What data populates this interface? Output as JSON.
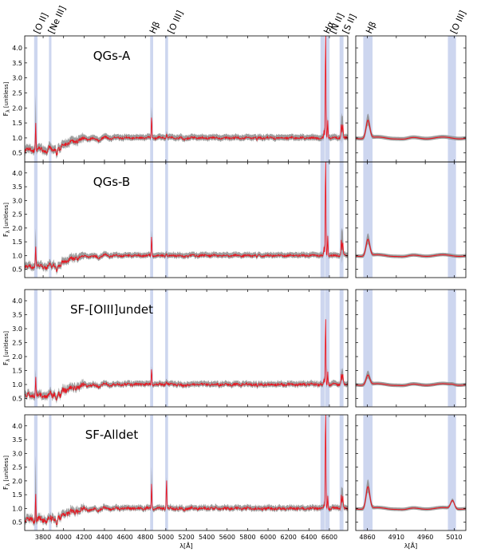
{
  "chart_data": {
    "type": "line",
    "xlabel": "λ[Å]",
    "ylabel": "F_λ [unitless]",
    "ylabel_main": "F",
    "ylabel_sub": "λ",
    "ylabel_unit": "[unitless]",
    "ylim": [
      0.2,
      4.4
    ],
    "yticks": [
      0.5,
      1.0,
      1.5,
      2.0,
      2.5,
      3.0,
      3.5,
      4.0
    ],
    "ytick_labels": [
      "0.5",
      "1.0",
      "1.5",
      "2.0",
      "2.5",
      "3.0",
      "3.5",
      "4.0"
    ],
    "main_axis": {
      "xlim": [
        3620,
        6780
      ],
      "xticks": [
        3800,
        4000,
        4200,
        4400,
        4600,
        4800,
        5000,
        5200,
        5400,
        5600,
        5800,
        6000,
        6200,
        6400,
        6600
      ],
      "xtick_labels": [
        "3800",
        "4000",
        "4200",
        "4400",
        "4600",
        "4800",
        "5000",
        "5200",
        "5400",
        "5600",
        "5800",
        "6000",
        "6200",
        "6400",
        "6600"
      ]
    },
    "zoom_axis": {
      "xlim": [
        4840,
        5030
      ],
      "xticks": [
        4860,
        4910,
        4960,
        5010
      ],
      "xtick_labels": [
        "4860",
        "4910",
        "4960",
        "5010"
      ]
    },
    "emission_lines": [
      {
        "label": "[O II]",
        "wavelength": 3727,
        "band": [
          3712,
          3745
        ]
      },
      {
        "label": "[Ne III]",
        "wavelength": 3869,
        "band": [
          3857,
          3881
        ]
      },
      {
        "label": "Hβ",
        "wavelength": 4861,
        "band": [
          4847,
          4876
        ]
      },
      {
        "label": "[O III]",
        "wavelength": 5007,
        "band": [
          4994,
          5022
        ]
      },
      {
        "label": "Hα",
        "wavelength": 6563,
        "band": [
          6513,
          6553
        ]
      },
      {
        "label": "[N II]",
        "wavelength": 6584,
        "band": [
          6557,
          6602
        ]
      },
      {
        "label": "[S II]",
        "wavelength": 6724,
        "band": [
          6700,
          6738
        ]
      }
    ],
    "zoom_emission_lines": [
      {
        "label": "Hβ",
        "wavelength": 4861,
        "band": [
          4853,
          4869
        ]
      },
      {
        "label": "[O III]",
        "wavelength": 5007,
        "band": [
          4999,
          5013
        ]
      }
    ],
    "panels": [
      {
        "name": "QGs-A",
        "peaks": {
          "O2": 1.8,
          "Ne3": 0.0,
          "Hb": 1.5,
          "O3": 0.15,
          "Ha": 3.9,
          "N2": 2.2,
          "S2": 1.5
        },
        "err_peaks": {
          "O2": 2.4,
          "Hb": 2.0,
          "Ha": 3.8,
          "S2": 1.6
        },
        "zoom_peaks": {
          "Hb": 1.6,
          "O3": 1.0
        },
        "noise": 0.1
      },
      {
        "name": "QGs-B",
        "peaks": {
          "O2": 1.5,
          "Ne3": 0.0,
          "Hb": 1.5,
          "O3": 0.1,
          "Ha": 4.1,
          "N2": 2.7,
          "S2": 1.7
        },
        "err_peaks": {
          "O2": 1.95,
          "Hb": 1.9,
          "Ha": 4.2,
          "S2": 1.8
        },
        "zoom_peaks": {
          "Hb": 1.6,
          "O3": 1.0
        },
        "noise": 0.1
      },
      {
        "name": "SF-[OIII]undet",
        "peaks": {
          "O2": 1.2,
          "Ne3": 0.0,
          "Hb": 1.2,
          "O3": 0.1,
          "Ha": 2.6,
          "N2": 1.6,
          "S2": 1.3
        },
        "err_peaks": {
          "O2": 1.35,
          "Hb": 1.45,
          "Ha": 3.35,
          "S2": 1.35
        },
        "zoom_peaks": {
          "Hb": 1.35,
          "O3": 1.02
        },
        "noise": 0.13
      },
      {
        "name": "SF-Alldet",
        "peaks": {
          "O2": 1.9,
          "Ne3": 0.0,
          "Hb": 1.8,
          "O3": 1.1,
          "Ha": 4.3,
          "N2": 1.8,
          "S2": 1.5
        },
        "err_peaks": {
          "O2": 2.95,
          "Hb": 2.45,
          "Ha": 4.3,
          "S2": 1.6
        },
        "zoom_peaks": {
          "Hb": 1.8,
          "O3": 1.3
        },
        "noise": 0.14
      }
    ],
    "colors": {
      "median": "#e8141e",
      "error": "#8c8c8c",
      "band": "#cdd6ef",
      "frame": "#000000"
    }
  }
}
